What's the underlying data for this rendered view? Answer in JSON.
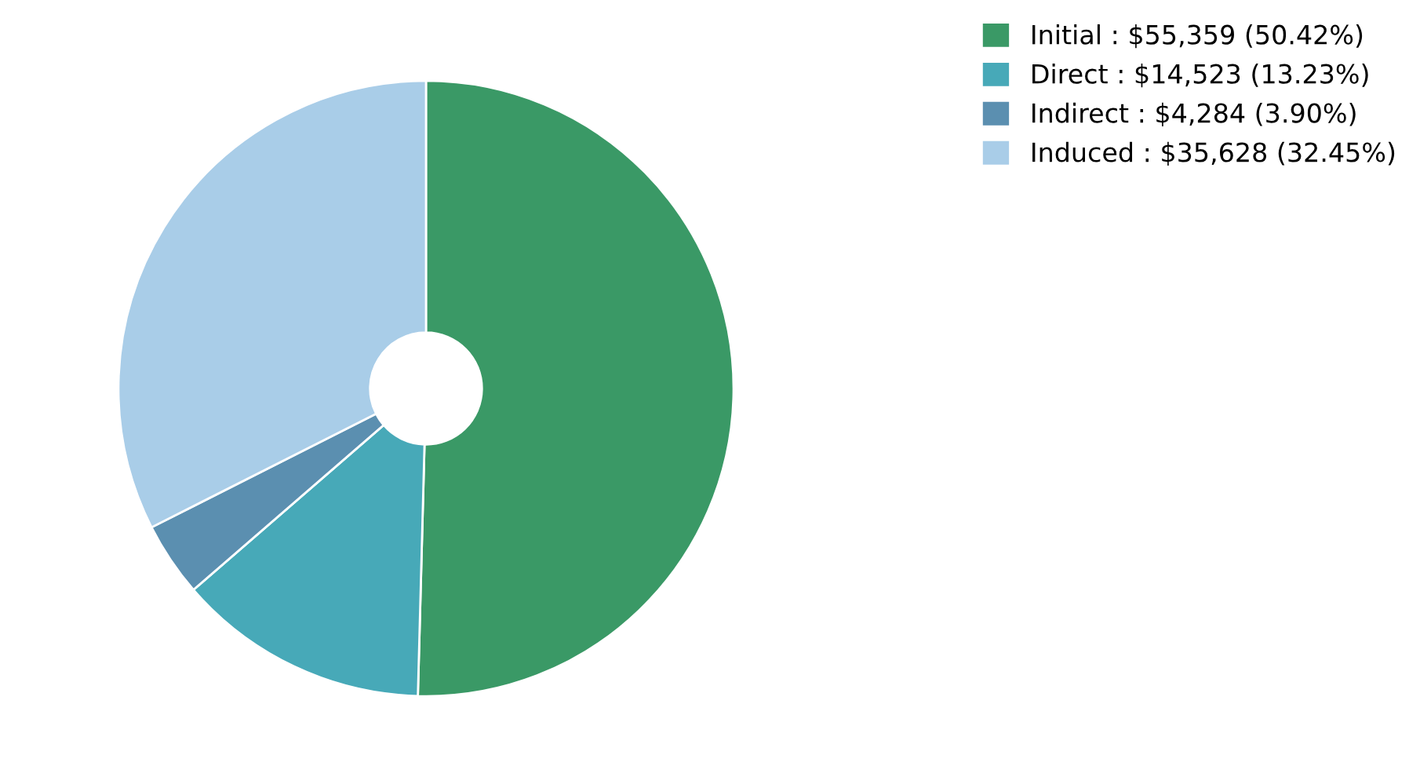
{
  "chart_data": {
    "type": "donut",
    "categories": [
      "Initial : $55,359 (50.42%)",
      "Direct : $14,523 (13.23%)",
      "Indirect : $4,284 (3.90%)",
      "Induced : $35,628 (32.45%)"
    ],
    "values": [
      55359,
      14523,
      4284,
      35628
    ],
    "colors": [
      "#3a9966",
      "#47a9b8",
      "#5b8fb0",
      "#a9cde8"
    ],
    "legend": "top right"
  }
}
